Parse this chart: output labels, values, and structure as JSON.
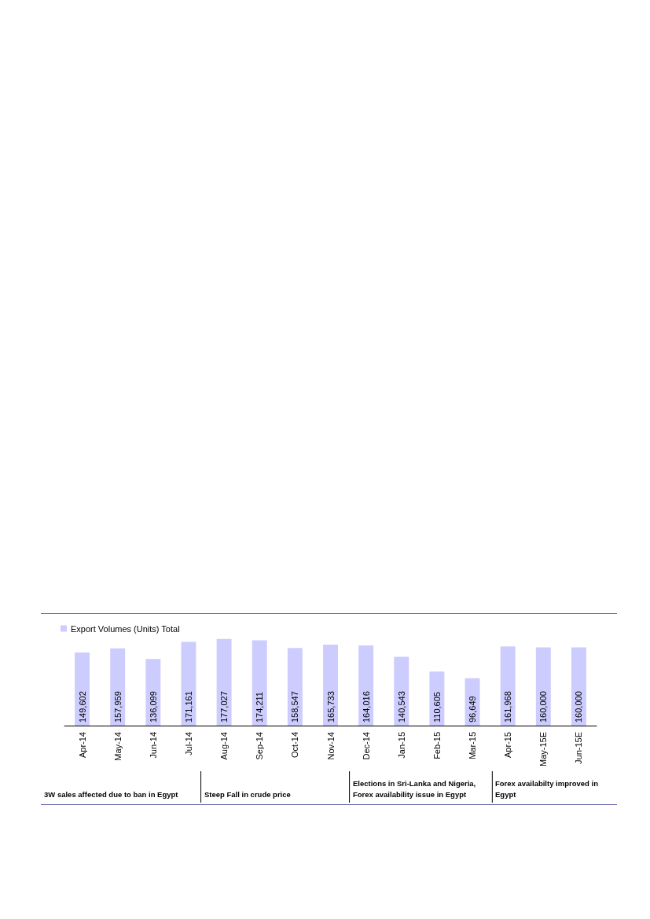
{
  "chart_data": {
    "type": "bar",
    "categories": [
      "Apr-14",
      "May-14",
      "Jun-14",
      "Jul-14",
      "Aug-14",
      "Sep-14",
      "Oct-14",
      "Nov-14",
      "Dec-14",
      "Jan-15",
      "Feb-15",
      "Mar-15",
      "Apr-15",
      "May-15E",
      "Jun-15E"
    ],
    "series": [
      {
        "name": "Export Volumes (Units) Total",
        "color": "#ccccff",
        "values": [
          149602,
          157959,
          136099,
          171161,
          177027,
          174211,
          158547,
          165733,
          164016,
          140543,
          110605,
          96649,
          161968,
          160000,
          160000
        ],
        "value_labels": [
          "149,602",
          "157,959",
          "136,099",
          "171,161",
          "177,027",
          "174,211",
          "158,547",
          "165,733",
          "164,016",
          "140,543",
          "110,605",
          "96,649",
          "161,968",
          "160,000",
          "160,000"
        ]
      }
    ],
    "legend": "top left",
    "grid": false,
    "annotations": [
      "3W sales affected due to ban in Egypt",
      "Steep Fall in crude price",
      "Elections in Sri-Lanka and Nigeria, Forex availability issue in Egypt",
      "Forex availabilty improved in Egypt"
    ]
  }
}
